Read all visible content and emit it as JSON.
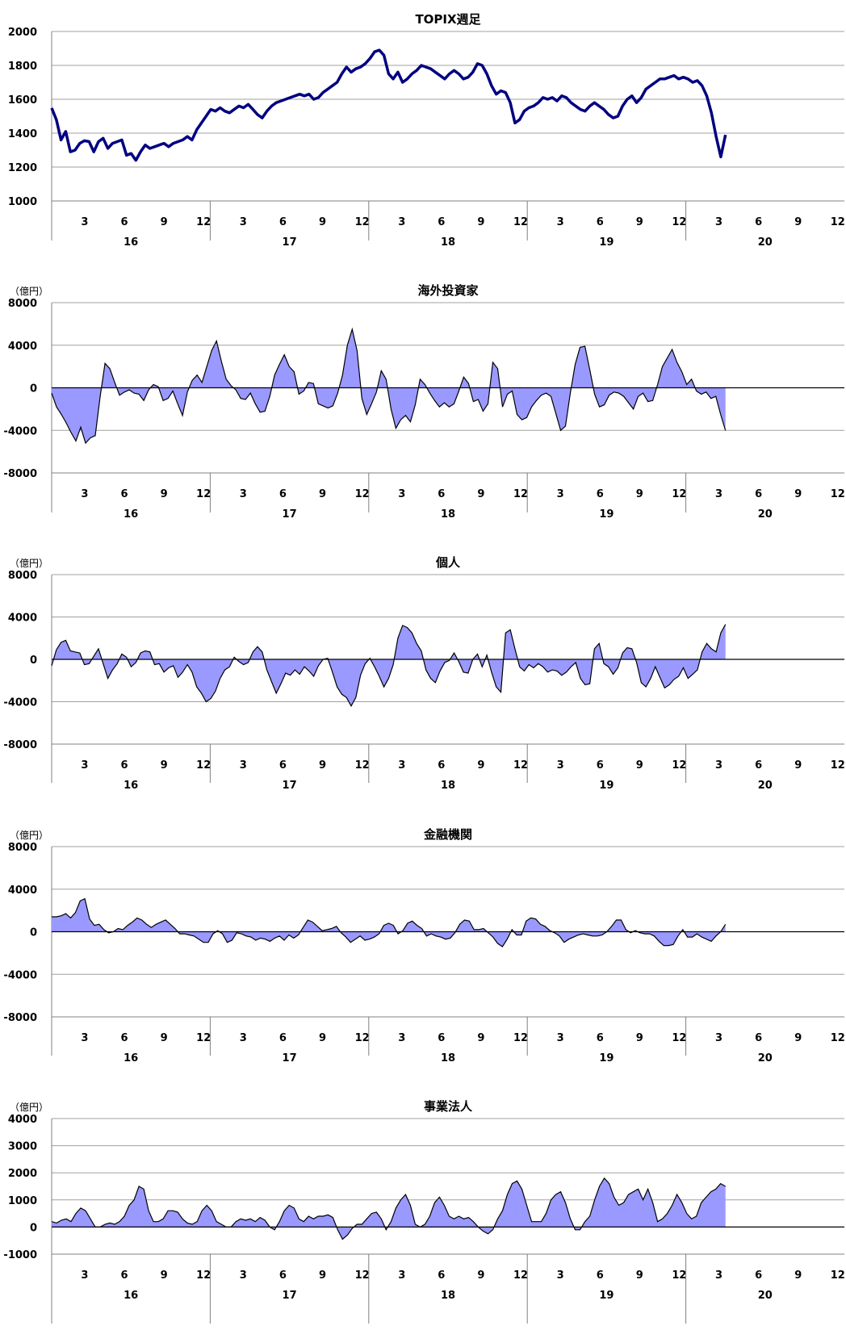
{
  "unit_label": "（億円）",
  "x_axis": {
    "month_ticks": [
      "3",
      "6",
      "9",
      "12"
    ],
    "years": [
      "16",
      "17",
      "18",
      "19",
      "20"
    ]
  },
  "chart_data": [
    {
      "type": "line",
      "title": "TOPIX週足",
      "ylim": [
        1000,
        2000
      ],
      "yticks": [
        "1000",
        "1200",
        "1400",
        "1600",
        "1800",
        "2000"
      ],
      "show_unit": false,
      "color": "#000080",
      "series": [
        {
          "values": [
            1548,
            1480,
            1360,
            1410,
            1290,
            1300,
            1340,
            1355,
            1350,
            1290,
            1350,
            1370,
            1310,
            1340,
            1350,
            1360,
            1270,
            1280,
            1240,
            1290,
            1330,
            1310,
            1320,
            1330,
            1340,
            1320,
            1340,
            1350,
            1360,
            1380,
            1360,
            1420,
            1460,
            1500,
            1540,
            1530,
            1550,
            1530,
            1520,
            1540,
            1560,
            1550,
            1570,
            1540,
            1510,
            1490,
            1530,
            1560,
            1580,
            1590,
            1600,
            1610,
            1620,
            1630,
            1620,
            1630,
            1600,
            1610,
            1640,
            1660,
            1680,
            1700,
            1750,
            1790,
            1760,
            1780,
            1790,
            1810,
            1840,
            1880,
            1890,
            1860,
            1750,
            1720,
            1760,
            1700,
            1720,
            1750,
            1770,
            1800,
            1790,
            1780,
            1760,
            1740,
            1720,
            1750,
            1770,
            1750,
            1720,
            1730,
            1760,
            1810,
            1800,
            1750,
            1680,
            1630,
            1650,
            1640,
            1580,
            1460,
            1480,
            1530,
            1550,
            1560,
            1580,
            1610,
            1600,
            1610,
            1590,
            1620,
            1610,
            1580,
            1560,
            1540,
            1530,
            1560,
            1580,
            1560,
            1540,
            1510,
            1490,
            1500,
            1560,
            1600,
            1620,
            1580,
            1610,
            1660,
            1680,
            1700,
            1720,
            1720,
            1730,
            1740,
            1720,
            1730,
            1720,
            1700,
            1710,
            1680,
            1620,
            1520,
            1380,
            1260,
            1390
          ]
        }
      ]
    },
    {
      "type": "area",
      "title": "海外投資家",
      "ylim": [
        -8000,
        8000
      ],
      "yticks": [
        "-8000",
        "-4000",
        "0",
        "4000",
        "8000"
      ],
      "show_unit": true,
      "color": "#9999ff",
      "series": [
        {
          "values": [
            -500,
            -1800,
            -2500,
            -3300,
            -4200,
            -5000,
            -3700,
            -5200,
            -4700,
            -4500,
            -800,
            2300,
            1800,
            500,
            -700,
            -400,
            -200,
            -500,
            -600,
            -1200,
            -200,
            300,
            100,
            -1200,
            -1000,
            -300,
            -1500,
            -2600,
            -400,
            700,
            1200,
            500,
            2000,
            3500,
            4400,
            2500,
            800,
            200,
            -200,
            -1000,
            -1100,
            -500,
            -1500,
            -2300,
            -2200,
            -800,
            1200,
            2200,
            3100,
            2000,
            1500,
            -600,
            -300,
            500,
            400,
            -1500,
            -1700,
            -1900,
            -1700,
            -500,
            1200,
            4000,
            5500,
            3500,
            -1000,
            -2500,
            -1500,
            -400,
            1600,
            800,
            -2000,
            -3800,
            -3000,
            -2600,
            -3200,
            -1600,
            800,
            300,
            -500,
            -1200,
            -1800,
            -1400,
            -1800,
            -1500,
            -300,
            1000,
            400,
            -1300,
            -1100,
            -2200,
            -1500,
            2400,
            1800,
            -1800,
            -600,
            -300,
            -2500,
            -3000,
            -2800,
            -1800,
            -1200,
            -700,
            -500,
            -800,
            -2400,
            -4000,
            -3600,
            -500,
            2200,
            3800,
            3900,
            1700,
            -600,
            -1800,
            -1600,
            -700,
            -400,
            -500,
            -800,
            -1400,
            -2000,
            -800,
            -500,
            -1300,
            -1200,
            300,
            2000,
            2800,
            3600,
            2400,
            1500,
            300,
            800,
            -300,
            -600,
            -400,
            -1000,
            -800,
            -2500,
            -4000
          ]
        }
      ]
    },
    {
      "type": "area",
      "title": "個人",
      "ylim": [
        -8000,
        8000
      ],
      "yticks": [
        "-8000",
        "-4000",
        "0",
        "4000",
        "8000"
      ],
      "show_unit": true,
      "color": "#9999ff",
      "series": [
        {
          "values": [
            -600,
            900,
            1600,
            1800,
            800,
            700,
            600,
            -500,
            -400,
            300,
            1000,
            -400,
            -1800,
            -1000,
            -400,
            500,
            200,
            -700,
            -300,
            600,
            800,
            700,
            -500,
            -400,
            -1200,
            -800,
            -600,
            -1700,
            -1200,
            -500,
            -1200,
            -2600,
            -3200,
            -4000,
            -3700,
            -3000,
            -1800,
            -1000,
            -700,
            200,
            -200,
            -500,
            -300,
            700,
            1200,
            700,
            -1000,
            -2100,
            -3200,
            -2300,
            -1300,
            -1500,
            -1000,
            -1400,
            -700,
            -1100,
            -1600,
            -600,
            0,
            100,
            -1200,
            -2600,
            -3300,
            -3600,
            -4400,
            -3600,
            -1500,
            -400,
            100,
            -700,
            -1600,
            -2600,
            -1800,
            -500,
            2000,
            3200,
            3000,
            2500,
            1500,
            800,
            -1000,
            -1800,
            -2200,
            -1100,
            -300,
            -100,
            600,
            -200,
            -1200,
            -1300,
            0,
            500,
            -700,
            400,
            -1200,
            -2600,
            -3100,
            2500,
            2800,
            1000,
            -700,
            -1100,
            -500,
            -800,
            -400,
            -700,
            -1200,
            -1000,
            -1100,
            -1500,
            -1200,
            -700,
            -300,
            -1800,
            -2400,
            -2300,
            1000,
            1500,
            -400,
            -700,
            -1400,
            -800,
            600,
            1100,
            1000,
            -300,
            -2200,
            -2600,
            -1800,
            -700,
            -1700,
            -2700,
            -2400,
            -1900,
            -1600,
            -800,
            -1800,
            -1400,
            -1000,
            700,
            1500,
            1000,
            700,
            2500,
            3300
          ]
        }
      ]
    },
    {
      "type": "area",
      "title": "金融機関",
      "ylim": [
        -8000,
        8000
      ],
      "yticks": [
        "-8000",
        "-4000",
        "0",
        "4000",
        "8000"
      ],
      "show_unit": true,
      "color": "#9999ff",
      "series": [
        {
          "values": [
            1400,
            1400,
            1500,
            1700,
            1300,
            1800,
            2900,
            3100,
            1200,
            600,
            700,
            200,
            -100,
            0,
            300,
            200,
            600,
            900,
            1300,
            1100,
            700,
            400,
            700,
            900,
            1100,
            700,
            300,
            -200,
            -200,
            -300,
            -400,
            -700,
            -1000,
            -1000,
            -200,
            100,
            -200,
            -1000,
            -800,
            -100,
            -200,
            -400,
            -500,
            -800,
            -600,
            -700,
            -900,
            -600,
            -400,
            -800,
            -300,
            -600,
            -300,
            400,
            1100,
            900,
            500,
            100,
            200,
            300,
            500,
            -100,
            -500,
            -1000,
            -700,
            -400,
            -800,
            -700,
            -500,
            -200,
            600,
            800,
            600,
            -200,
            100,
            800,
            1000,
            600,
            300,
            -400,
            -200,
            -400,
            -500,
            -700,
            -600,
            -100,
            700,
            1100,
            1000,
            200,
            200,
            300,
            -100,
            -500,
            -1100,
            -1400,
            -700,
            200,
            -300,
            -300,
            1000,
            1300,
            1200,
            700,
            500,
            100,
            -100,
            -400,
            -1000,
            -700,
            -500,
            -300,
            -200,
            -300,
            -400,
            -400,
            -300,
            0,
            500,
            1100,
            1100,
            200,
            -100,
            100,
            -100,
            -200,
            -200,
            -400,
            -900,
            -1300,
            -1300,
            -1200,
            -400,
            200,
            -500,
            -500,
            -200,
            -500,
            -700,
            -900,
            -400,
            0,
            700
          ]
        }
      ]
    },
    {
      "type": "area",
      "title": "事業法人",
      "ylim": [
        -1000,
        4000
      ],
      "yticks": [
        "-1000",
        "0",
        "1000",
        "2000",
        "3000",
        "4000"
      ],
      "show_unit": true,
      "color": "#9999ff",
      "series": [
        {
          "values": [
            200,
            150,
            250,
            300,
            200,
            500,
            700,
            600,
            300,
            0,
            0,
            100,
            150,
            100,
            200,
            400,
            800,
            1000,
            1500,
            1400,
            600,
            200,
            200,
            300,
            600,
            600,
            550,
            300,
            150,
            100,
            200,
            600,
            800,
            600,
            200,
            100,
            0,
            0,
            200,
            300,
            250,
            300,
            200,
            350,
            250,
            0,
            -100,
            200,
            600,
            800,
            700,
            300,
            200,
            400,
            300,
            400,
            400,
            450,
            350,
            -100,
            -450,
            -300,
            -50,
            100,
            100,
            300,
            500,
            550,
            300,
            -100,
            200,
            700,
            1000,
            1200,
            800,
            100,
            0,
            100,
            400,
            900,
            1100,
            800,
            400,
            300,
            400,
            300,
            350,
            200,
            0,
            -150,
            -250,
            -100,
            300,
            600,
            1200,
            1600,
            1700,
            1400,
            800,
            200,
            200,
            200,
            500,
            1000,
            1200,
            1300,
            900,
            300,
            -100,
            -100,
            200,
            400,
            1000,
            1500,
            1800,
            1600,
            1100,
            800,
            900,
            1200,
            1300,
            1400,
            1000,
            1400,
            900,
            200,
            300,
            500,
            800,
            1200,
            900,
            500,
            300,
            400,
            900,
            1100,
            1300,
            1400,
            1600,
            1500
          ]
        }
      ]
    }
  ]
}
